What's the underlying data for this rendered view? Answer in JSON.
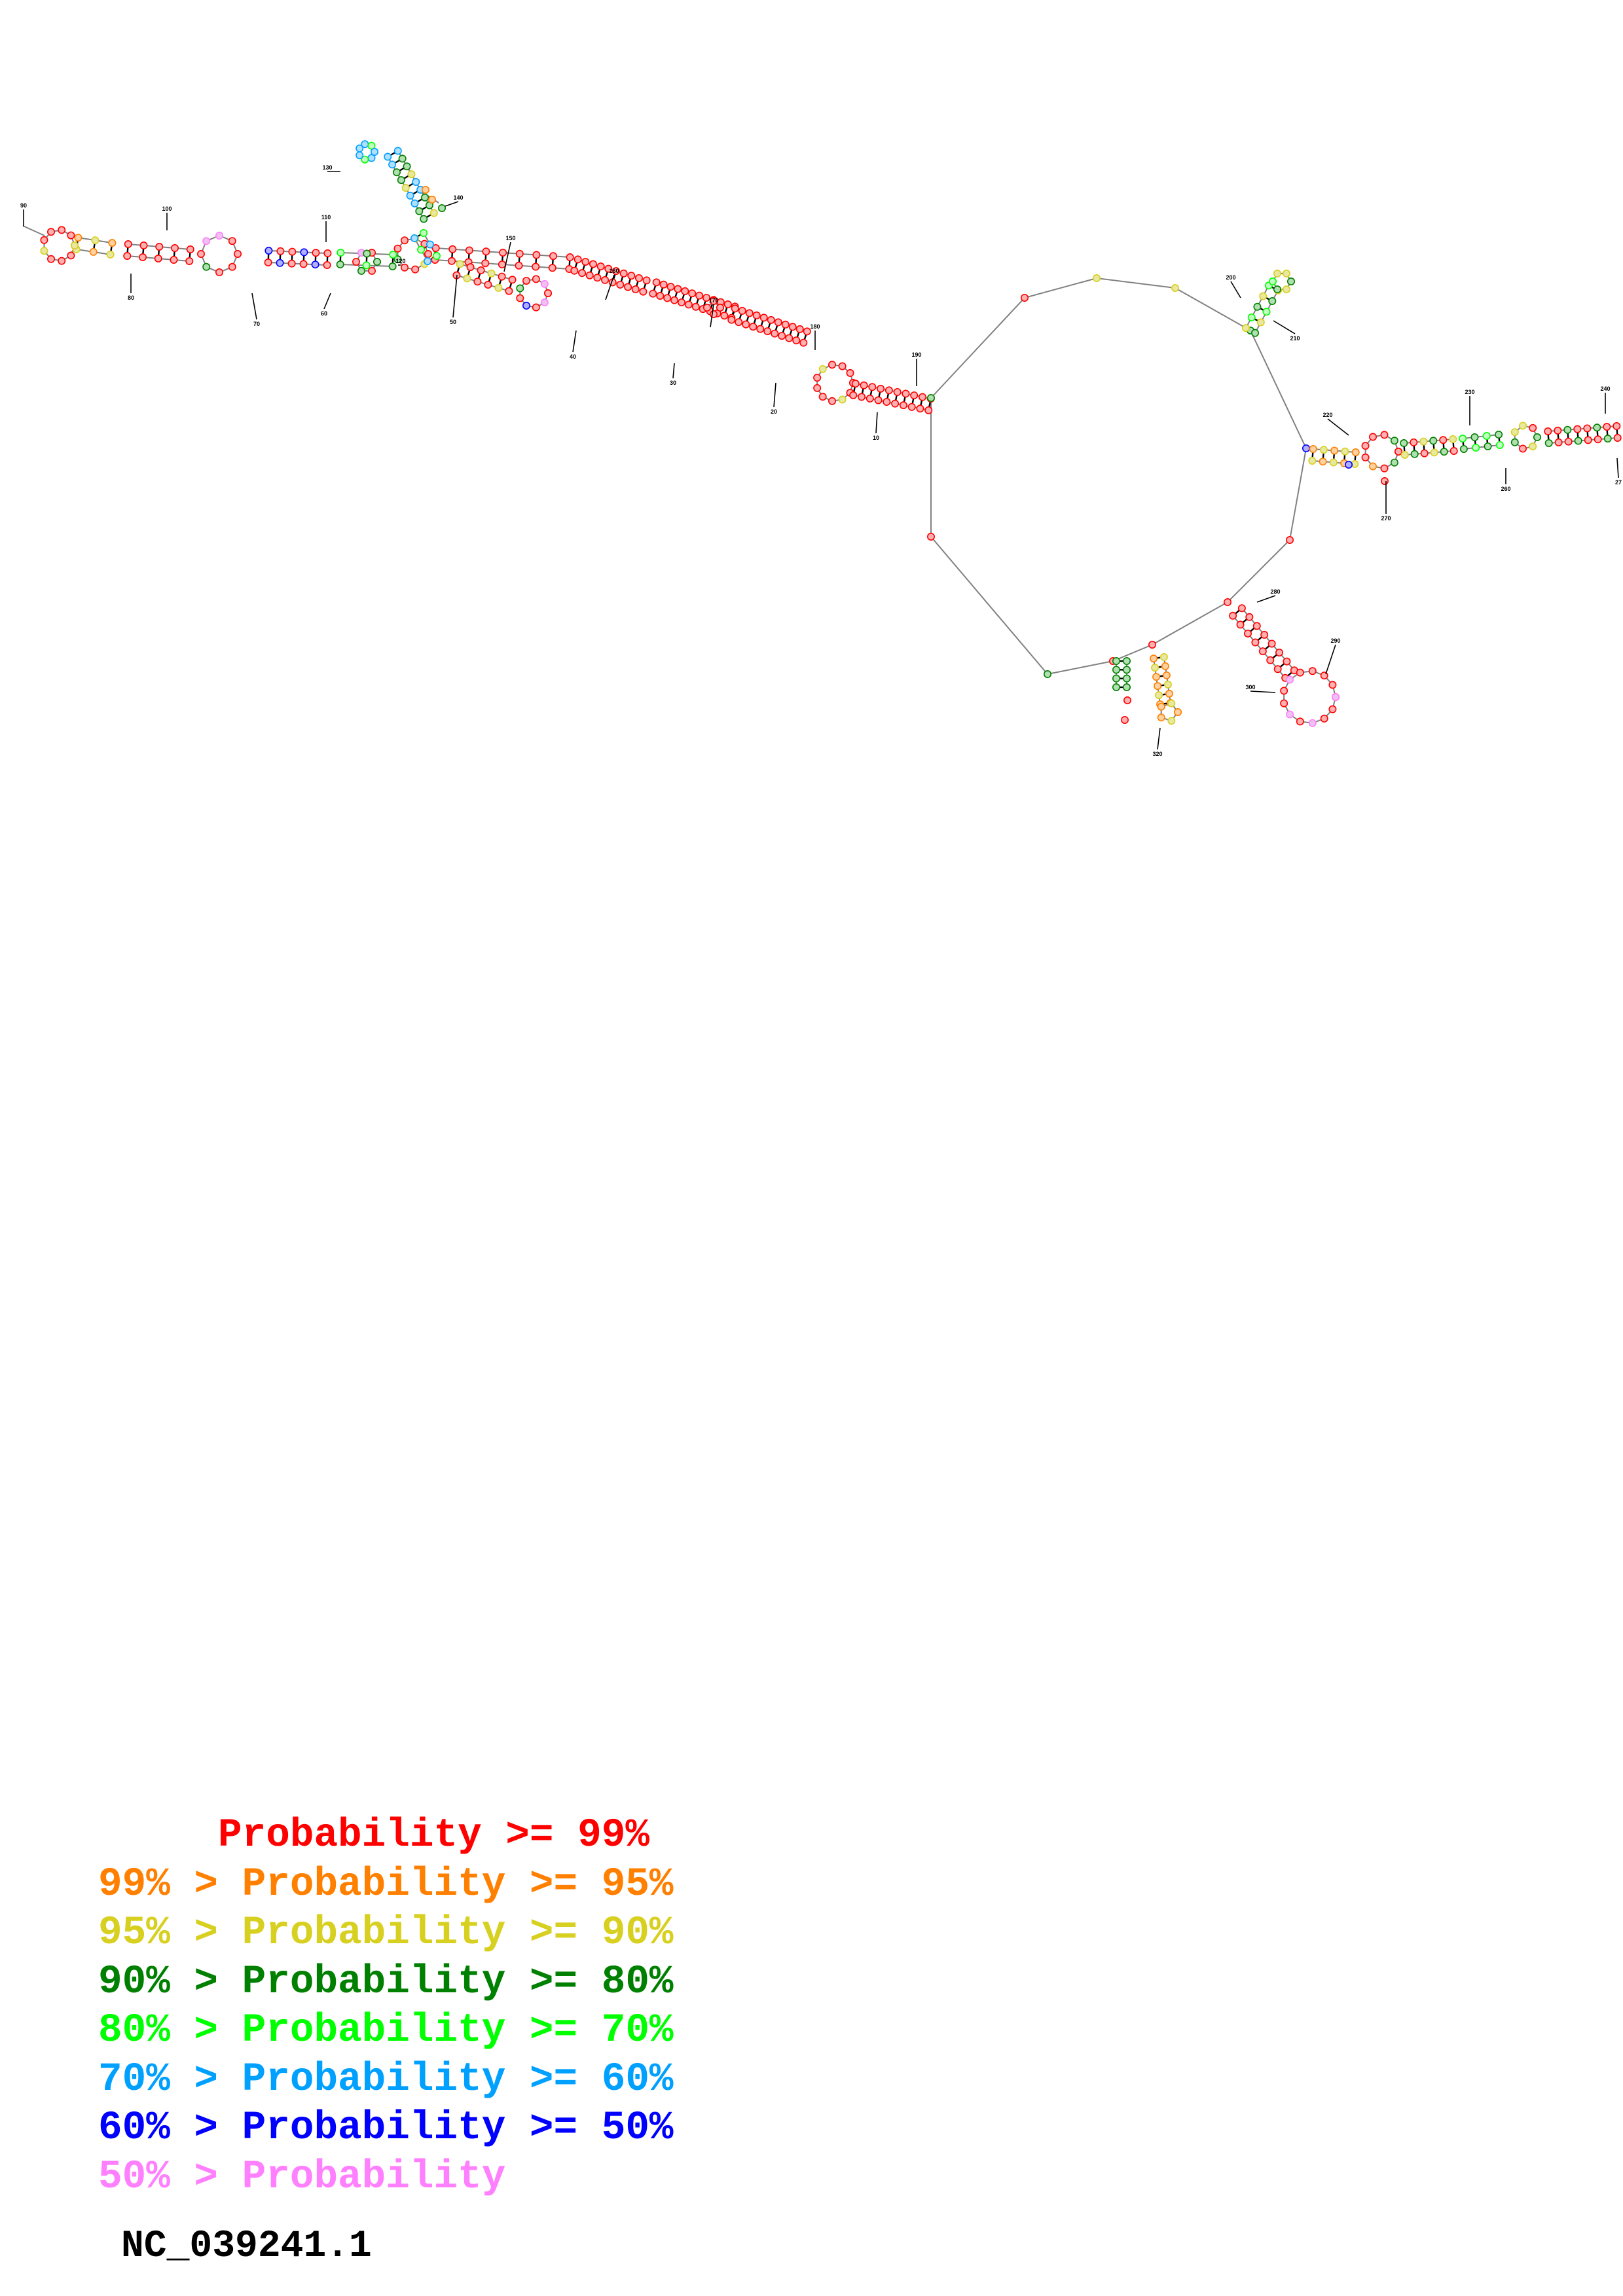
{
  "structure": {
    "palette": {
      "p99": "#ff0000",
      "p95": "#ff8000",
      "p90": "#d8d020",
      "p80": "#008000",
      "p70": "#00ff00",
      "p60": "#00a0ff",
      "p50": "#0000ff",
      "plt50": "#ff80ff"
    },
    "position_labels": [
      "10",
      "20",
      "30",
      "40",
      "50",
      "60",
      "70",
      "80",
      "90",
      "100",
      "110",
      "120",
      "130",
      "140",
      "150",
      "160",
      "170",
      "180",
      "190",
      "200",
      "210",
      "220",
      "230",
      "240",
      "260",
      "270",
      "280",
      "290",
      "300",
      "320",
      "27"
    ]
  },
  "legend": [
    {
      "text": "     Probability >= 99%",
      "color": "#ff0000"
    },
    {
      "text": "99% > Probability >= 95%",
      "color": "#ff8000"
    },
    {
      "text": "95% > Probability >= 90%",
      "color": "#d8d020"
    },
    {
      "text": "90% > Probability >= 80%",
      "color": "#008000"
    },
    {
      "text": "80% > Probability >= 70%",
      "color": "#00ff00"
    },
    {
      "text": "70% > Probability >= 60%",
      "color": "#00a0ff"
    },
    {
      "text": "60% > Probability >= 50%",
      "color": "#0000ff"
    },
    {
      "text": "50% > Probability",
      "color": "#ff80ff"
    }
  ],
  "sequence_id": "NC_039241.1"
}
